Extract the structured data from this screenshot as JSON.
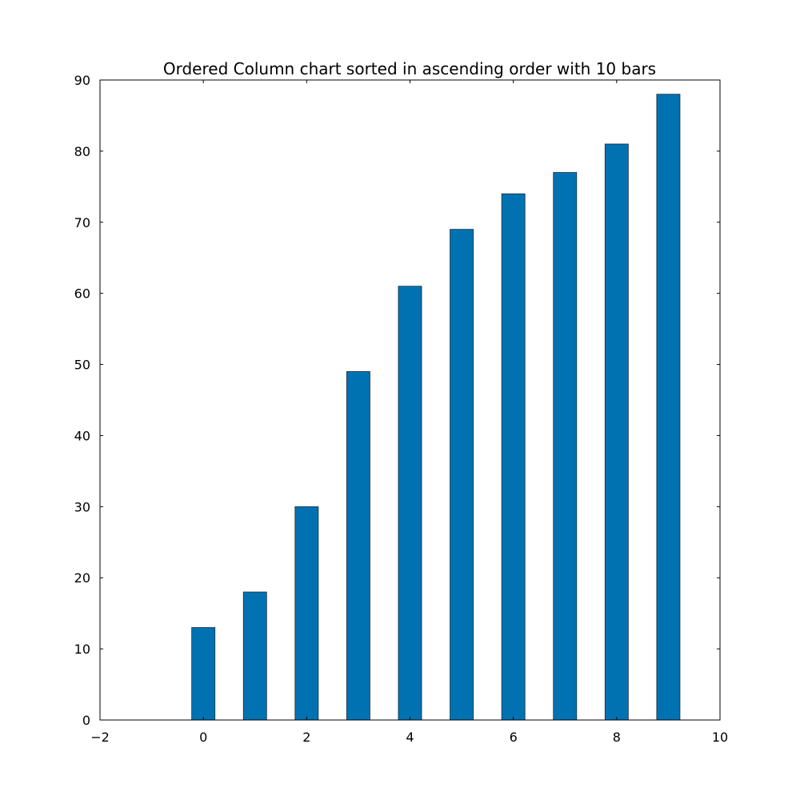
{
  "chart_data": {
    "type": "bar",
    "title": "Ordered Column chart sorted in ascending order with 10 bars",
    "xlabel": "",
    "ylabel": "",
    "x": [
      0,
      1,
      2,
      3,
      4,
      5,
      6,
      7,
      8,
      9
    ],
    "values": [
      13,
      18,
      30,
      49,
      61,
      69,
      74,
      77,
      81,
      88
    ],
    "bar_width": 0.45,
    "xlim": [
      -2,
      10
    ],
    "ylim": [
      0,
      90
    ],
    "xticks": [
      -2,
      0,
      2,
      4,
      6,
      8,
      10
    ],
    "xtick_labels": [
      "−2",
      "0",
      "2",
      "4",
      "6",
      "8",
      "10"
    ],
    "yticks": [
      0,
      10,
      20,
      30,
      40,
      50,
      60,
      70,
      80,
      90
    ],
    "ytick_labels": [
      "0",
      "10",
      "20",
      "30",
      "40",
      "50",
      "60",
      "70",
      "80",
      "90"
    ],
    "grid": false,
    "legend": "none",
    "colors": {
      "bar_fill": "#0072b2",
      "bar_edge": "#1a2a3a",
      "axis": "#000000",
      "background": "#ffffff"
    }
  }
}
